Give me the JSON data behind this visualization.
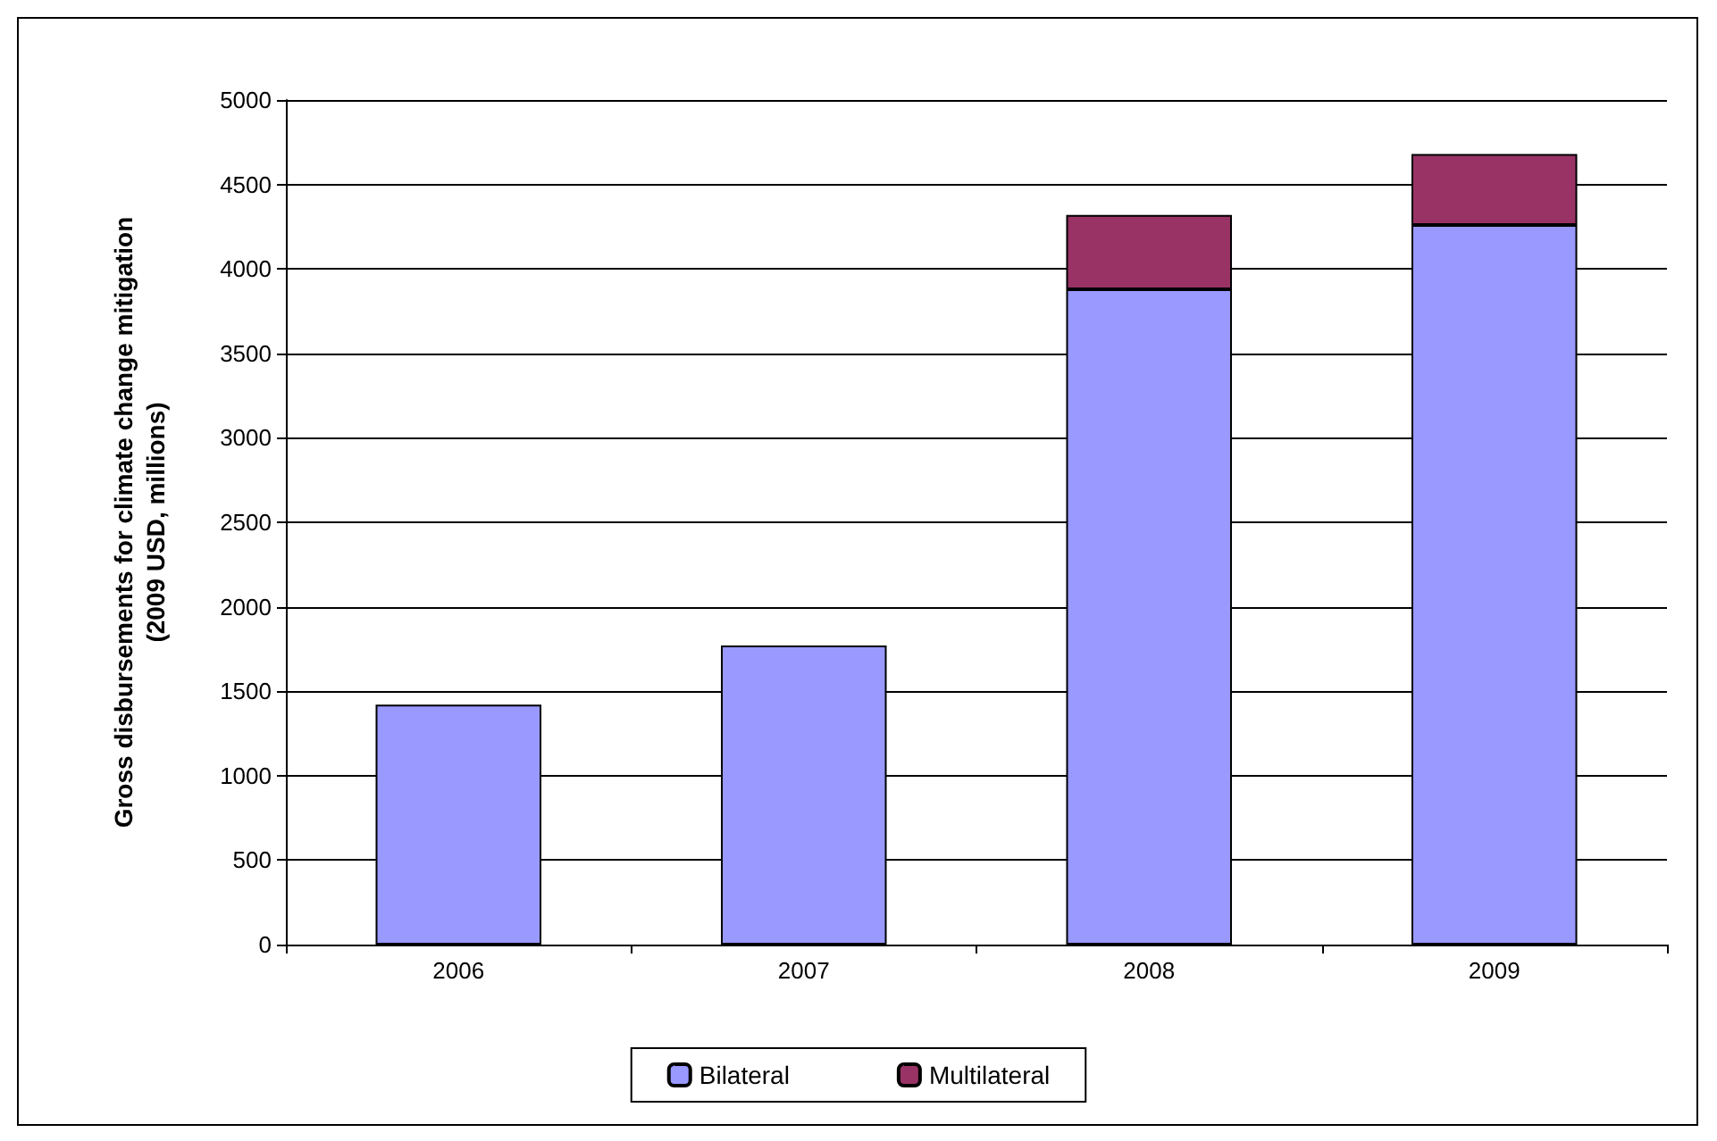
{
  "chart_data": {
    "type": "bar",
    "ylabel": "Gross disbursements for climate change mitigation\n(2009 USD, millions)",
    "categories": [
      "2006",
      "2007",
      "2008",
      "2009"
    ],
    "series": [
      {
        "name": "Bilateral",
        "color": "#9999ff",
        "values": [
          1420,
          1770,
          3880,
          4260
        ]
      },
      {
        "name": "Multilateral",
        "color": "#993366",
        "values": [
          null,
          null,
          440,
          420
        ]
      }
    ],
    "stacked": true,
    "ylim": [
      0,
      5000
    ],
    "yticks": [
      0,
      500,
      1000,
      1500,
      2000,
      2500,
      3000,
      3500,
      4000,
      4500,
      5000
    ],
    "grid": "y",
    "legend": "bottom"
  }
}
